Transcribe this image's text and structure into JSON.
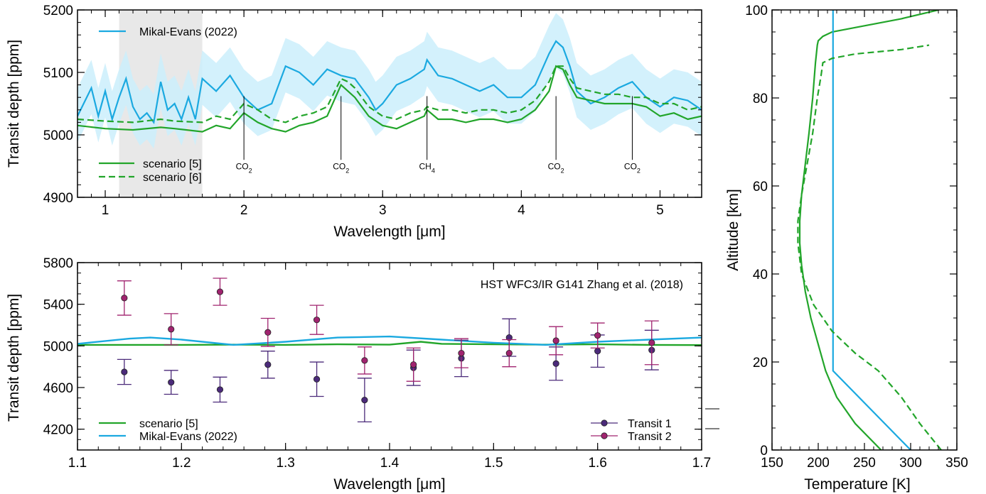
{
  "chart_data": [
    {
      "type": "line",
      "xlabel": "Wavelength [μm]",
      "ylabel": "Transit depth [ppm]",
      "xlim": [
        0.8,
        5.3
      ],
      "ylim": [
        4900,
        5200
      ],
      "x_ticks": [
        1,
        2,
        3,
        4,
        5
      ],
      "y_ticks": [
        4900,
        5000,
        5100,
        5200
      ],
      "shaded_region": [
        1.1,
        1.7
      ],
      "legend_top": "top-left",
      "legend_bottom": "bottom-left",
      "series": [
        {
          "name": "Mikal-Evans (2022)",
          "color": "#1ba9e0",
          "style": "solid",
          "x": [
            0.8,
            0.9,
            0.95,
            1.0,
            1.05,
            1.1,
            1.15,
            1.2,
            1.25,
            1.3,
            1.35,
            1.4,
            1.45,
            1.5,
            1.55,
            1.6,
            1.65,
            1.7,
            1.8,
            1.9,
            2.0,
            2.1,
            2.2,
            2.3,
            2.4,
            2.5,
            2.6,
            2.7,
            2.8,
            2.9,
            2.95,
            3.0,
            3.1,
            3.2,
            3.3,
            3.32,
            3.4,
            3.5,
            3.6,
            3.7,
            3.8,
            3.9,
            4.0,
            4.1,
            4.2,
            4.25,
            4.3,
            4.35,
            4.4,
            4.5,
            4.6,
            4.7,
            4.8,
            4.9,
            5.0,
            5.1,
            5.2,
            5.3
          ],
          "values": [
            5030,
            5075,
            5030,
            5070,
            5025,
            5060,
            5090,
            5045,
            5025,
            5035,
            5020,
            5085,
            5040,
            5050,
            5025,
            5060,
            5025,
            5090,
            5070,
            5095,
            5060,
            5040,
            5050,
            5110,
            5100,
            5080,
            5105,
            5095,
            5090,
            5060,
            5040,
            5050,
            5080,
            5090,
            5105,
            5120,
            5095,
            5090,
            5080,
            5070,
            5080,
            5060,
            5060,
            5080,
            5130,
            5150,
            5140,
            5110,
            5070,
            5050,
            5060,
            5075,
            5085,
            5060,
            5045,
            5060,
            5055,
            5040
          ]
        },
        {
          "name": "scenario [5]",
          "color": "#22a52a",
          "style": "solid",
          "x": [
            0.8,
            1.0,
            1.2,
            1.4,
            1.5,
            1.7,
            1.8,
            1.9,
            2.0,
            2.1,
            2.2,
            2.3,
            2.4,
            2.5,
            2.6,
            2.7,
            2.75,
            2.8,
            2.9,
            3.0,
            3.1,
            3.2,
            3.3,
            3.32,
            3.4,
            3.5,
            3.6,
            3.7,
            3.8,
            3.9,
            4.0,
            4.1,
            4.2,
            4.25,
            4.3,
            4.35,
            4.4,
            4.5,
            4.6,
            4.7,
            4.8,
            4.9,
            5.0,
            5.1,
            5.2,
            5.3
          ],
          "values": [
            5015,
            5010,
            5008,
            5012,
            5010,
            5005,
            5015,
            5010,
            5035,
            5020,
            5010,
            5005,
            5015,
            5020,
            5030,
            5080,
            5070,
            5060,
            5030,
            5015,
            5010,
            5020,
            5030,
            5040,
            5025,
            5025,
            5020,
            5025,
            5025,
            5020,
            5025,
            5040,
            5070,
            5110,
            5105,
            5080,
            5060,
            5055,
            5050,
            5050,
            5050,
            5045,
            5030,
            5035,
            5025,
            5030
          ]
        },
        {
          "name": "scenario [6]",
          "color": "#22a52a",
          "style": "dashed",
          "x": [
            0.8,
            1.0,
            1.2,
            1.4,
            1.5,
            1.7,
            1.8,
            1.9,
            2.0,
            2.1,
            2.2,
            2.3,
            2.4,
            2.5,
            2.6,
            2.7,
            2.75,
            2.8,
            2.9,
            3.0,
            3.1,
            3.2,
            3.3,
            3.32,
            3.4,
            3.5,
            3.6,
            3.7,
            3.8,
            3.9,
            4.0,
            4.1,
            4.2,
            4.25,
            4.3,
            4.35,
            4.4,
            4.5,
            4.6,
            4.7,
            4.8,
            4.9,
            5.0,
            5.1,
            5.2,
            5.3
          ],
          "values": [
            5025,
            5022,
            5020,
            5025,
            5022,
            5020,
            5030,
            5025,
            5050,
            5040,
            5025,
            5020,
            5030,
            5035,
            5045,
            5090,
            5085,
            5075,
            5045,
            5030,
            5025,
            5035,
            5040,
            5045,
            5040,
            5040,
            5035,
            5040,
            5040,
            5035,
            5040,
            5055,
            5085,
            5110,
            5110,
            5090,
            5075,
            5070,
            5065,
            5065,
            5060,
            5060,
            5050,
            5050,
            5040,
            5045
          ]
        }
      ],
      "annotations": [
        {
          "label": "CO",
          "sub": "2",
          "x": 2.0
        },
        {
          "label": "CO",
          "sub": "2",
          "x": 2.7
        },
        {
          "label": "CH",
          "sub": "4",
          "x": 3.32
        },
        {
          "label": "CO",
          "sub": "2",
          "x": 4.25
        },
        {
          "label": "CO",
          "sub": "2",
          "x": 4.8
        }
      ]
    },
    {
      "type": "scatter",
      "title": "HST WFC3/IR G141 Zhang et al. (2018)",
      "xlabel": "Wavelength [μm]",
      "ylabel": "Transit depth [ppm]",
      "xlim": [
        1.1,
        1.7
      ],
      "ylim": [
        4000,
        5800
      ],
      "x_ticks": [
        1.1,
        1.2,
        1.3,
        1.4,
        1.5,
        1.6,
        1.7
      ],
      "y_ticks": [
        4200,
        4600,
        5000,
        5400,
        5800
      ],
      "legend_lines": "bottom-left",
      "legend_points": "bottom-right",
      "lines": [
        {
          "name": "scenario [5]",
          "color": "#22a52a",
          "x": [
            1.1,
            1.2,
            1.25,
            1.3,
            1.35,
            1.4,
            1.43,
            1.45,
            1.5,
            1.55,
            1.6,
            1.65,
            1.7
          ],
          "values": [
            5010,
            5010,
            5012,
            5010,
            5015,
            5012,
            5040,
            5020,
            5015,
            5012,
            5015,
            5010,
            5008
          ]
        },
        {
          "name": "Mikal-Evans (2022)",
          "color": "#1ba9e0",
          "x": [
            1.1,
            1.15,
            1.17,
            1.2,
            1.25,
            1.3,
            1.35,
            1.4,
            1.45,
            1.5,
            1.55,
            1.6,
            1.65,
            1.7
          ],
          "values": [
            5020,
            5070,
            5080,
            5060,
            5010,
            5040,
            5080,
            5090,
            5060,
            5030,
            5010,
            5040,
            5060,
            5080
          ]
        }
      ],
      "points": [
        {
          "name": "Transit 1",
          "color": "#4b2a7a",
          "x": [
            1.145,
            1.19,
            1.237,
            1.283,
            1.33,
            1.376,
            1.423,
            1.469,
            1.515,
            1.56,
            1.6,
            1.652
          ],
          "y": [
            4750,
            4650,
            4580,
            4820,
            4680,
            4480,
            4790,
            4880,
            5080,
            4830,
            4950,
            4960
          ],
          "err": [
            120,
            115,
            120,
            130,
            165,
            210,
            170,
            175,
            180,
            160,
            155,
            190
          ]
        },
        {
          "name": "Transit 2",
          "color": "#a0236f",
          "x": [
            1.145,
            1.19,
            1.237,
            1.283,
            1.33,
            1.376,
            1.423,
            1.469,
            1.515,
            1.56,
            1.6,
            1.652
          ],
          "y": [
            5460,
            5160,
            5520,
            5130,
            5250,
            4860,
            4820,
            4930,
            4930,
            5050,
            5100,
            5030
          ],
          "err": [
            165,
            150,
            130,
            135,
            140,
            130,
            160,
            140,
            130,
            135,
            120,
            210
          ]
        }
      ]
    },
    {
      "type": "line",
      "xlabel": "Temperature [K]",
      "ylabel": "Altitude [km]",
      "xlim": [
        150,
        350
      ],
      "ylim": [
        0,
        100
      ],
      "x_ticks": [
        150,
        200,
        250,
        300,
        350
      ],
      "y_ticks": [
        0,
        20,
        40,
        60,
        80,
        100
      ],
      "series": [
        {
          "name": "scenario [5]",
          "color": "#22a52a",
          "style": "solid",
          "temperature": [
            268,
            240,
            220,
            208,
            200,
            192,
            186,
            182,
            180,
            180,
            182,
            186,
            190,
            194,
            197,
            199,
            200,
            205,
            215,
            240,
            290,
            330
          ],
          "altitude": [
            0,
            6,
            12,
            18,
            24,
            30,
            36,
            42,
            47,
            52,
            58,
            65,
            72,
            80,
            88,
            92,
            93,
            94,
            95,
            96,
            98,
            100
          ]
        },
        {
          "name": "Mikal-Evans (2022)",
          "color": "#1ba9e0",
          "style": "solid",
          "temperature": [
            300,
            216,
            216,
            216
          ],
          "altitude": [
            0,
            18,
            90,
            100
          ]
        },
        {
          "name": "scenario [6]",
          "color": "#22a52a",
          "style": "dashed",
          "temperature": [
            333,
            310,
            290,
            265,
            240,
            215,
            195,
            182,
            178,
            178,
            182,
            188,
            194,
            199,
            203,
            205,
            215,
            240,
            290,
            320
          ],
          "altitude": [
            0,
            6,
            12,
            18,
            22,
            27,
            33,
            40,
            47,
            52,
            58,
            65,
            72,
            80,
            85,
            88,
            89,
            90,
            91,
            92
          ]
        }
      ]
    }
  ],
  "legend_labels": {
    "mikal": "Mikal-Evans (2022)",
    "s5": "scenario [5]",
    "s6": "scenario [6]",
    "t1": "Transit 1",
    "t2": "Transit 2"
  },
  "colors": {
    "green": "#22a52a",
    "blue": "#1ba9e0",
    "band": "#cbeefc",
    "shade": "#e8e8e8",
    "t1": "#4b2a7a",
    "t2": "#a0236f"
  }
}
